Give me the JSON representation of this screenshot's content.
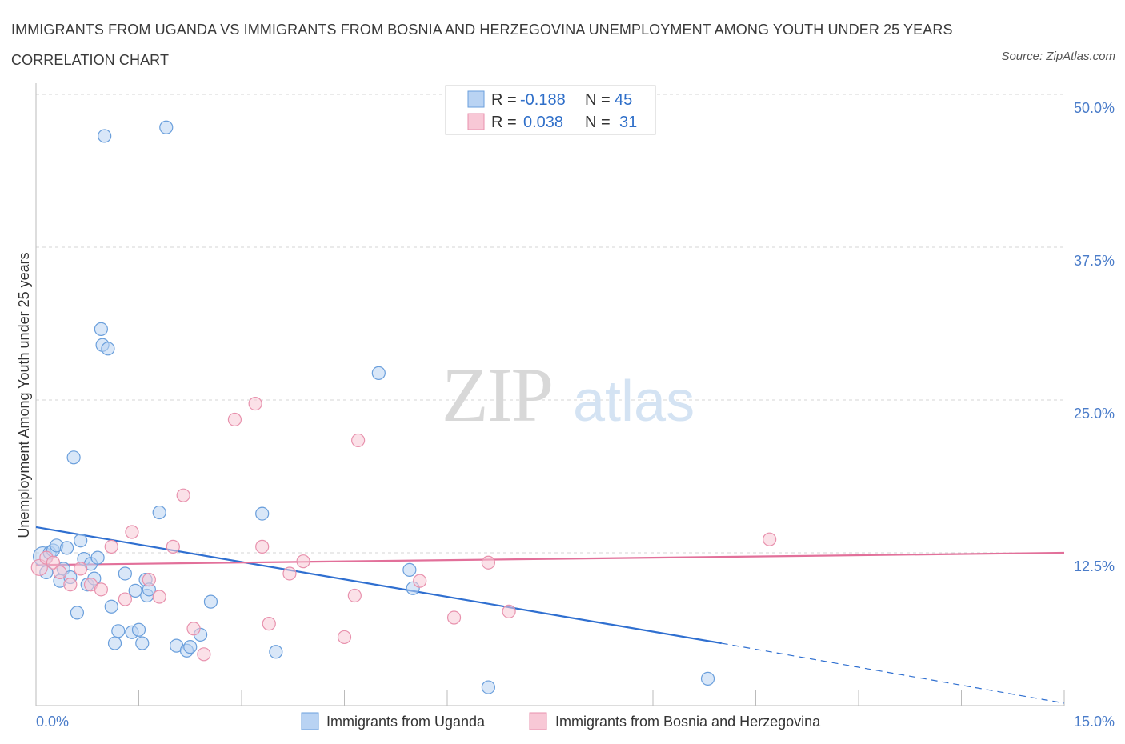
{
  "title": "IMMIGRANTS FROM UGANDA VS IMMIGRANTS FROM BOSNIA AND HERZEGOVINA UNEMPLOYMENT AMONG YOUTH UNDER 25 YEARS CORRELATION CHART",
  "source": "Source: ZipAtlas.com",
  "watermark": {
    "zip": "ZIP",
    "atlas": "atlas"
  },
  "colors": {
    "uganda_fill": "#b9d3f3",
    "uganda_stroke": "#6a9fdc",
    "uganda_line": "#2f6fd0",
    "bosnia_fill": "#f8c8d6",
    "bosnia_stroke": "#e891ad",
    "bosnia_line": "#e2709a",
    "grid": "#d6d6d6",
    "tick_text": "#4a7cc9"
  },
  "stats_legend": {
    "r_label": "R =",
    "n_label": "N =",
    "uganda": {
      "r": "-0.188",
      "n": "45"
    },
    "bosnia": {
      "r": "0.038",
      "n": "31"
    }
  },
  "chart_data": {
    "type": "scatter",
    "xlabel": "",
    "ylabel": "Unemployment Among Youth under 25 years",
    "xlim": [
      0,
      15
    ],
    "ylim": [
      0,
      50
    ],
    "x_tick_labels": [
      "0.0%",
      "15.0%"
    ],
    "y_ticks": [
      12.5,
      25,
      37.5,
      50
    ],
    "y_tick_labels": [
      "12.5%",
      "25.0%",
      "37.5%",
      "50.0%"
    ],
    "grid": true,
    "legend_position": "bottom",
    "series": [
      {
        "name": "Immigrants from Uganda",
        "color": "#6a9fdc",
        "trend": {
          "x1": 0,
          "y1": 14.6,
          "x2": 10.0,
          "y2": 5.1,
          "dashed_to_x": 15.0,
          "dashed_to_y": 0.2
        },
        "points": [
          {
            "x": 0.1,
            "y": 12.2,
            "size": 24
          },
          {
            "x": 0.15,
            "y": 10.9
          },
          {
            "x": 0.2,
            "y": 12.5
          },
          {
            "x": 0.25,
            "y": 12.7
          },
          {
            "x": 0.3,
            "y": 13.1
          },
          {
            "x": 0.35,
            "y": 10.2
          },
          {
            "x": 0.4,
            "y": 11.2
          },
          {
            "x": 0.45,
            "y": 12.9
          },
          {
            "x": 0.5,
            "y": 10.5
          },
          {
            "x": 0.55,
            "y": 20.3
          },
          {
            "x": 0.6,
            "y": 7.6
          },
          {
            "x": 0.65,
            "y": 13.5
          },
          {
            "x": 0.7,
            "y": 12.0
          },
          {
            "x": 0.75,
            "y": 9.9
          },
          {
            "x": 0.8,
            "y": 11.6
          },
          {
            "x": 0.85,
            "y": 10.4
          },
          {
            "x": 0.9,
            "y": 12.1
          },
          {
            "x": 0.95,
            "y": 30.8
          },
          {
            "x": 0.97,
            "y": 29.5
          },
          {
            "x": 1.0,
            "y": 46.6
          },
          {
            "x": 1.05,
            "y": 29.2
          },
          {
            "x": 1.1,
            "y": 8.1
          },
          {
            "x": 1.15,
            "y": 5.1
          },
          {
            "x": 1.2,
            "y": 6.1
          },
          {
            "x": 1.3,
            "y": 10.8
          },
          {
            "x": 1.4,
            "y": 6.0
          },
          {
            "x": 1.5,
            "y": 6.2
          },
          {
            "x": 1.45,
            "y": 9.4
          },
          {
            "x": 1.55,
            "y": 5.1
          },
          {
            "x": 1.6,
            "y": 10.3
          },
          {
            "x": 1.62,
            "y": 9.0
          },
          {
            "x": 1.65,
            "y": 9.5
          },
          {
            "x": 1.8,
            "y": 15.8
          },
          {
            "x": 1.9,
            "y": 47.3
          },
          {
            "x": 2.05,
            "y": 4.9
          },
          {
            "x": 2.2,
            "y": 4.5
          },
          {
            "x": 2.25,
            "y": 4.8
          },
          {
            "x": 2.4,
            "y": 5.8
          },
          {
            "x": 2.55,
            "y": 8.5
          },
          {
            "x": 3.3,
            "y": 15.7
          },
          {
            "x": 3.5,
            "y": 4.4
          },
          {
            "x": 5.0,
            "y": 27.2
          },
          {
            "x": 5.45,
            "y": 11.1
          },
          {
            "x": 5.5,
            "y": 9.6
          },
          {
            "x": 6.6,
            "y": 1.5
          },
          {
            "x": 9.8,
            "y": 2.2
          }
        ]
      },
      {
        "name": "Immigrants from Bosnia and Herzegovina",
        "color": "#e891ad",
        "trend": {
          "x1": 0,
          "y1": 11.5,
          "x2": 15.0,
          "y2": 12.5
        },
        "points": [
          {
            "x": 0.05,
            "y": 11.3,
            "size": 20
          },
          {
            "x": 0.15,
            "y": 12.1
          },
          {
            "x": 0.25,
            "y": 11.7
          },
          {
            "x": 0.35,
            "y": 10.9
          },
          {
            "x": 0.5,
            "y": 9.9
          },
          {
            "x": 0.65,
            "y": 11.2
          },
          {
            "x": 0.8,
            "y": 9.9
          },
          {
            "x": 0.95,
            "y": 9.5
          },
          {
            "x": 1.1,
            "y": 13.0
          },
          {
            "x": 1.3,
            "y": 8.7
          },
          {
            "x": 1.4,
            "y": 14.2
          },
          {
            "x": 1.65,
            "y": 10.3
          },
          {
            "x": 1.8,
            "y": 8.9
          },
          {
            "x": 2.0,
            "y": 13.0
          },
          {
            "x": 2.15,
            "y": 17.2
          },
          {
            "x": 2.3,
            "y": 6.3
          },
          {
            "x": 2.45,
            "y": 4.2
          },
          {
            "x": 2.9,
            "y": 23.4
          },
          {
            "x": 3.2,
            "y": 24.7
          },
          {
            "x": 3.3,
            "y": 13.0
          },
          {
            "x": 3.4,
            "y": 6.7
          },
          {
            "x": 3.7,
            "y": 10.8
          },
          {
            "x": 3.9,
            "y": 11.8
          },
          {
            "x": 4.5,
            "y": 5.6
          },
          {
            "x": 4.65,
            "y": 9.0
          },
          {
            "x": 4.7,
            "y": 21.7
          },
          {
            "x": 5.6,
            "y": 10.2
          },
          {
            "x": 6.1,
            "y": 7.2
          },
          {
            "x": 6.6,
            "y": 11.7
          },
          {
            "x": 6.9,
            "y": 7.7
          },
          {
            "x": 10.7,
            "y": 13.6
          }
        ]
      }
    ]
  }
}
